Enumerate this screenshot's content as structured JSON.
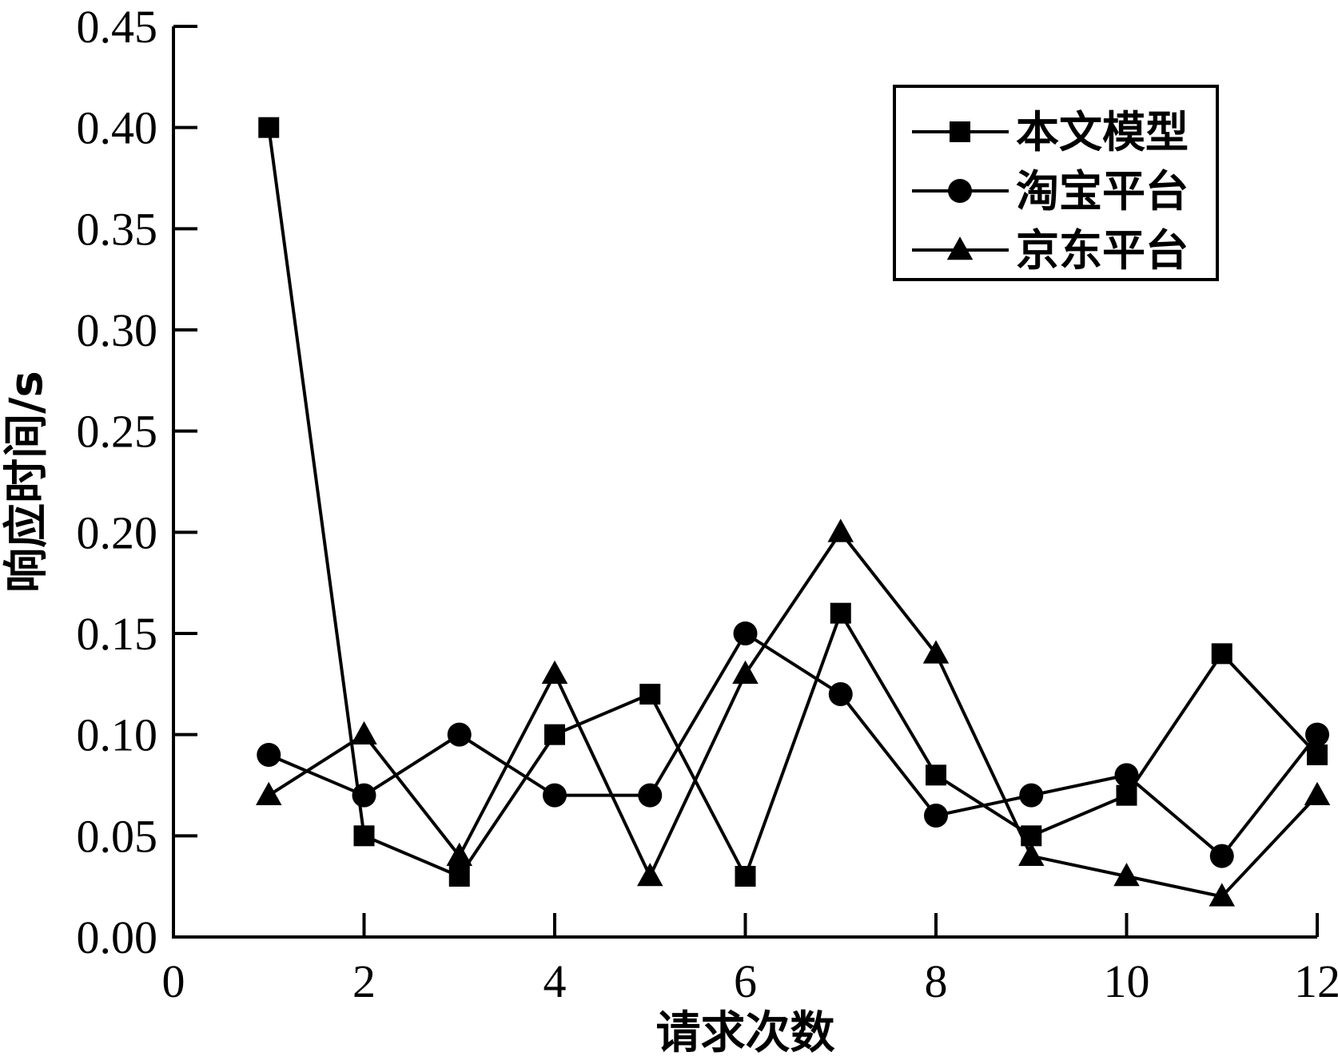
{
  "chart_data": {
    "type": "line",
    "xlabel": "请求次数",
    "ylabel": "响应时间/s",
    "xlim": [
      0,
      12
    ],
    "ylim": [
      0,
      0.45
    ],
    "xticks": [
      0,
      2,
      4,
      6,
      8,
      10,
      12
    ],
    "xtick_labels": [
      "0",
      "2",
      "4",
      "6",
      "8",
      "10",
      "12"
    ],
    "yticks": [
      0,
      0.05,
      0.1,
      0.15,
      0.2,
      0.25,
      0.3,
      0.35,
      0.4,
      0.45
    ],
    "ytick_labels": [
      "0.00",
      "0.05",
      "0.10",
      "0.15",
      "0.20",
      "0.25",
      "0.30",
      "0.35",
      "0.40",
      "0.45"
    ],
    "grid": false,
    "legend_position": "top-right",
    "x": [
      1,
      2,
      3,
      4,
      5,
      6,
      7,
      8,
      9,
      10,
      11,
      12
    ],
    "series": [
      {
        "name": "本文模型",
        "marker": "square",
        "color": "#000000",
        "values": [
          0.4,
          0.05,
          0.03,
          0.1,
          0.12,
          0.03,
          0.16,
          0.08,
          0.05,
          0.07,
          0.14,
          0.09
        ]
      },
      {
        "name": "淘宝平台",
        "marker": "circle",
        "color": "#000000",
        "values": [
          0.09,
          0.07,
          0.1,
          0.07,
          0.07,
          0.15,
          0.12,
          0.06,
          0.07,
          0.08,
          0.04,
          0.1
        ]
      },
      {
        "name": "京东平台",
        "marker": "triangle",
        "color": "#000000",
        "values": [
          0.07,
          0.1,
          0.04,
          0.13,
          0.03,
          0.13,
          0.2,
          0.14,
          0.04,
          0.03,
          0.02,
          0.07
        ]
      }
    ]
  }
}
